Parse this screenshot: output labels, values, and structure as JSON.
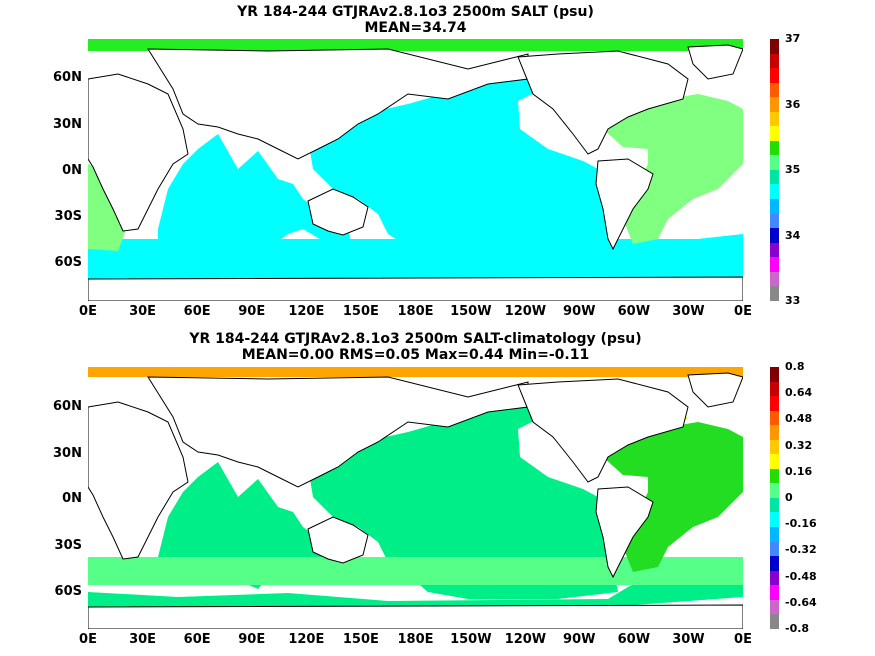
{
  "panels": [
    {
      "title_line1": "YR 184-244 GTJRAv2.8.1o3 2500m SALT (psu)",
      "title_line2": "MEAN=34.74",
      "ytick_labels": [
        "60N",
        "30N",
        "0N",
        "30S",
        "60S"
      ],
      "xtick_labels": [
        "0E",
        "30E",
        "60E",
        "90E",
        "120E",
        "150E",
        "180E",
        "150W",
        "120W",
        "90W",
        "60W",
        "30W",
        "0E"
      ],
      "colorbar": {
        "labels": [
          "37",
          "36",
          "35",
          "34",
          "33"
        ],
        "colors_top_to_bottom": [
          "#7f0000",
          "#c80000",
          "#ff0000",
          "#ff5a00",
          "#ff9600",
          "#ffc800",
          "#ffff00",
          "#22dd00",
          "#55ff88",
          "#00e5a0",
          "#00ffff",
          "#00b8ff",
          "#4488ff",
          "#0000cc",
          "#8800cc",
          "#ff00ff",
          "#cc66cc",
          "#888888"
        ]
      },
      "field_colors": {
        "pacific_indian": "#00ffff",
        "atlantic": "#80ff80",
        "southern": "#00ffff",
        "arctic_band": "#22ee22"
      }
    },
    {
      "title_line1": "YR 184-244 GTJRAv2.8.1o3 2500m SALT-climatology (psu)",
      "title_line2": "MEAN=0.00   RMS=0.05   Max=0.44   Min=-0.11",
      "ytick_labels": [
        "60N",
        "30N",
        "0N",
        "30S",
        "60S"
      ],
      "xtick_labels": [
        "0E",
        "30E",
        "60E",
        "90E",
        "120E",
        "150E",
        "180E",
        "150W",
        "120W",
        "90W",
        "60W",
        "30W",
        "0E"
      ],
      "colorbar": {
        "labels": [
          "0.8",
          "0.64",
          "0.48",
          "0.32",
          "0.16",
          "0",
          "-0.16",
          "-0.32",
          "-0.48",
          "-0.64",
          "-0.8"
        ],
        "colors_top_to_bottom": [
          "#7f0000",
          "#c80000",
          "#ff0000",
          "#ff5a00",
          "#ff9600",
          "#ffc800",
          "#ffff00",
          "#22dd00",
          "#55ff88",
          "#00e5a0",
          "#00ffff",
          "#00b8ff",
          "#4488ff",
          "#0000cc",
          "#8800cc",
          "#ff00ff",
          "#cc66cc",
          "#888888"
        ]
      },
      "field_colors": {
        "pacific_indian": "#00ee88",
        "atlantic_north": "#22dd22",
        "southern": "#55ff88",
        "arctic_band": "#ffa500",
        "labrador": "#ffff00"
      }
    }
  ]
}
